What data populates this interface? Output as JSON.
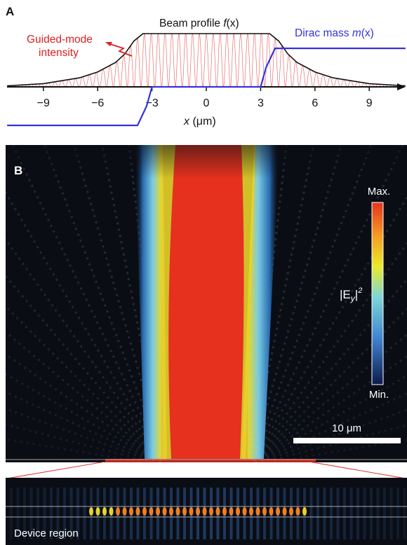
{
  "panel_a": {
    "label": "A",
    "beam_label_prefix": "Beam profile ",
    "beam_label_func": "f",
    "beam_label_arg": "(x)",
    "guided_label_line1": "Guided-mode",
    "guided_label_line2": "intensity",
    "dirac_label_prefix": "Dirac mass ",
    "dirac_label_func": "m",
    "dirac_label_arg": "(x)",
    "xaxis_var": "x",
    "xaxis_unit": " (μm)",
    "colors": {
      "beam": "#111111",
      "guided": "#e02020",
      "dirac": "#3333dd"
    }
  },
  "panel_b": {
    "label": "B",
    "colorbar_max": "Max.",
    "colorbar_min": "Min.",
    "colorbar_quantity": "|E",
    "colorbar_sub": "y",
    "colorbar_exp": "2",
    "scalebar_label": "10 μm",
    "device_label": "Device region"
  },
  "chart_data": [
    {
      "type": "line",
      "panel": "A",
      "xlabel": "x (μm)",
      "xticks": [
        -9,
        -6,
        -3,
        0,
        3,
        6,
        9
      ],
      "xlim": [
        -11,
        11
      ],
      "series": [
        {
          "name": "Beam profile f(x)",
          "x": [
            -11,
            -9,
            -7,
            -6,
            -5,
            -4.5,
            -4,
            -3.5,
            3.5,
            4,
            4.5,
            5,
            6,
            7,
            9,
            11
          ],
          "y": [
            0.02,
            0.06,
            0.17,
            0.28,
            0.46,
            0.62,
            0.86,
            1.0,
            1.0,
            0.86,
            0.62,
            0.46,
            0.28,
            0.17,
            0.06,
            0.02
          ]
        },
        {
          "name": "Dirac mass m(x)",
          "x": [
            -11,
            -3.8,
            -3.3,
            -3.0,
            3.0,
            3.3,
            3.8,
            11
          ],
          "y": [
            -1,
            -1,
            -0.5,
            0,
            0,
            0.5,
            1,
            1
          ]
        },
        {
          "name": "Guided-mode intensity",
          "description_period_um": 0.38
        }
      ]
    }
  ]
}
